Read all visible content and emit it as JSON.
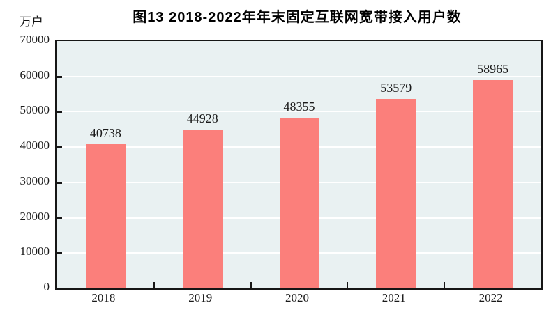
{
  "figure": {
    "title": "图13  2018-2022年年末固定互联网宽带接入用户数",
    "unit_label": "万户"
  },
  "chart_data": {
    "type": "bar",
    "title": "图13  2018-2022年年末固定互联网宽带接入用户数",
    "categories": [
      "2018",
      "2019",
      "2020",
      "2021",
      "2022"
    ],
    "values": [
      40738,
      44928,
      48355,
      53579,
      58965
    ],
    "xlabel": "",
    "ylabel": "万户",
    "ylim": [
      0,
      70000
    ],
    "ytick_step": 10000,
    "yticks": [
      0,
      10000,
      20000,
      30000,
      40000,
      50000,
      60000,
      70000
    ],
    "grid": true,
    "legend_position": "none",
    "data_labels": true,
    "colors": {
      "bar_fill": "#fb7f7b",
      "plot_background": "#e9f1f2",
      "gridline": "#ffffff",
      "axis": "#161616",
      "text": "#1a1a1a"
    }
  }
}
